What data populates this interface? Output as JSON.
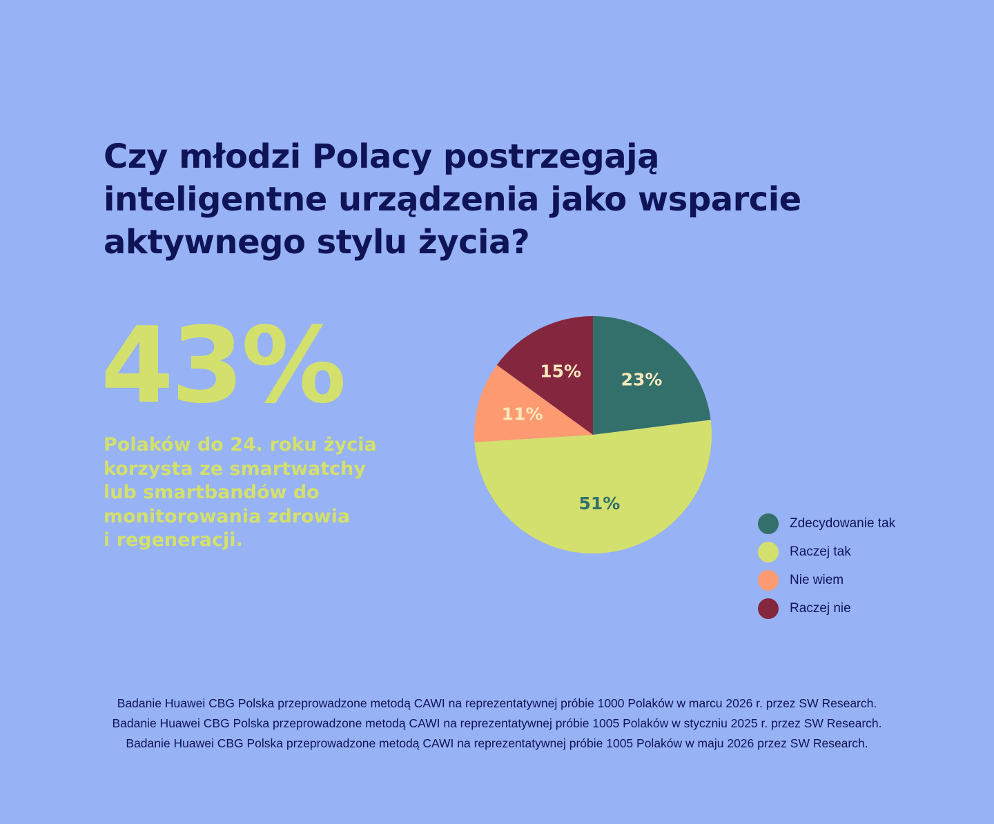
{
  "title_lines": [
    "Czy młodzi Polacy postrzegają",
    "inteligentne urządzenia jako wsparcie",
    "aktywnego stylu życia?"
  ],
  "highlight": {
    "value": "43%",
    "description_lines": [
      "Polaków do 24. roku życia",
      "korzysta ze smartwatchy",
      "lub smartbandów do",
      "monitorowania zdrowia",
      "i regeneracji."
    ]
  },
  "chart_data": {
    "type": "pie",
    "title": "",
    "legend_position": "bottom-right",
    "slices": [
      {
        "label": "Zdecydowanie tak",
        "value": 23,
        "display": "23%",
        "color": "#33706b",
        "text_color": "#f8e8bc"
      },
      {
        "label": "Raczej tak",
        "value": 51,
        "display": "51%",
        "color": "#d3e06d",
        "text_color": "#33706b"
      },
      {
        "label": "Nie wiem",
        "value": 11,
        "display": "11%",
        "color": "#fe9a72",
        "text_color": "#f8e8bc"
      },
      {
        "label": "Raczej nie",
        "value": 15,
        "display": "15%",
        "color": "#85263f",
        "text_color": "#f8e8bc"
      }
    ]
  },
  "footnotes": [
    "Badanie Huawei CBG Polska przeprowadzone metodą CAWI na reprezentatywnej próbie 1000 Polaków w marcu 2026 r. przez SW Research.",
    "Badanie Huawei CBG Polska przeprowadzone metodą CAWI na reprezentatywnej próbie 1005 Polaków w styczniu 2025 r. przez SW Research.",
    "Badanie Huawei CBG Polska przeprowadzone metodą CAWI na reprezentatywnej próbie 1005 Polaków w maju 2026 przez SW Research."
  ]
}
